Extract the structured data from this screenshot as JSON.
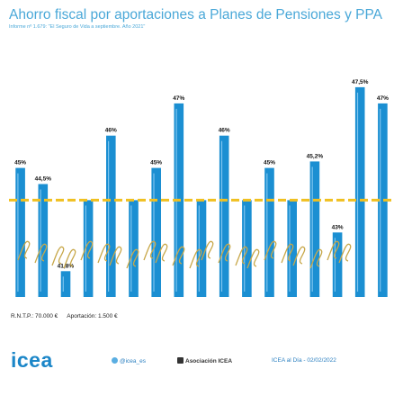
{
  "header": {
    "title": "Ahorro fiscal por aportaciones a Planes de Pensiones y PPA",
    "subtitle": "Informe nº 1.679: \"El Seguro de Vida a septiembre. Año 2021\""
  },
  "chart_data": {
    "type": "bar",
    "title": "Ahorro fiscal por aportaciones a Planes de Pensiones y PPA",
    "categories": [
      "",
      "",
      "",
      "",
      "",
      "",
      "",
      "",
      "",
      "",
      "",
      "",
      "",
      "",
      "",
      "",
      ""
    ],
    "values": [
      45,
      44.5,
      41.8,
      44,
      46,
      44,
      45,
      47,
      44,
      46,
      44,
      45,
      44,
      45.2,
      43,
      47.5,
      47
    ],
    "data_labels": [
      "45%",
      "44,5%",
      "41,8%",
      "",
      "46%",
      "",
      "45%",
      "47%",
      "",
      "46%",
      "",
      "45%",
      "",
      "45,2%",
      "43%",
      "47,5%",
      "47%"
    ],
    "reference_line": 44,
    "ylim": [
      0,
      48
    ],
    "grid": false,
    "legend": "none",
    "colors": {
      "bar": "#1b8fd2",
      "reference": "#f0c020",
      "signature": "#c8a84a",
      "brand": "#1b86c8"
    }
  },
  "footnote": {
    "rntp": "R.N.T.P.: 70.000 €",
    "aportacion": "Aportación: 1.500 €"
  },
  "footer": {
    "brand": "icea",
    "twitter": "@icea_es",
    "linkedin": "Asociación ICEA",
    "source": "ICEA al Día - 02/02/2022",
    "icons": {
      "twitter": "twitter-icon",
      "linkedin": "linkedin-icon"
    }
  }
}
